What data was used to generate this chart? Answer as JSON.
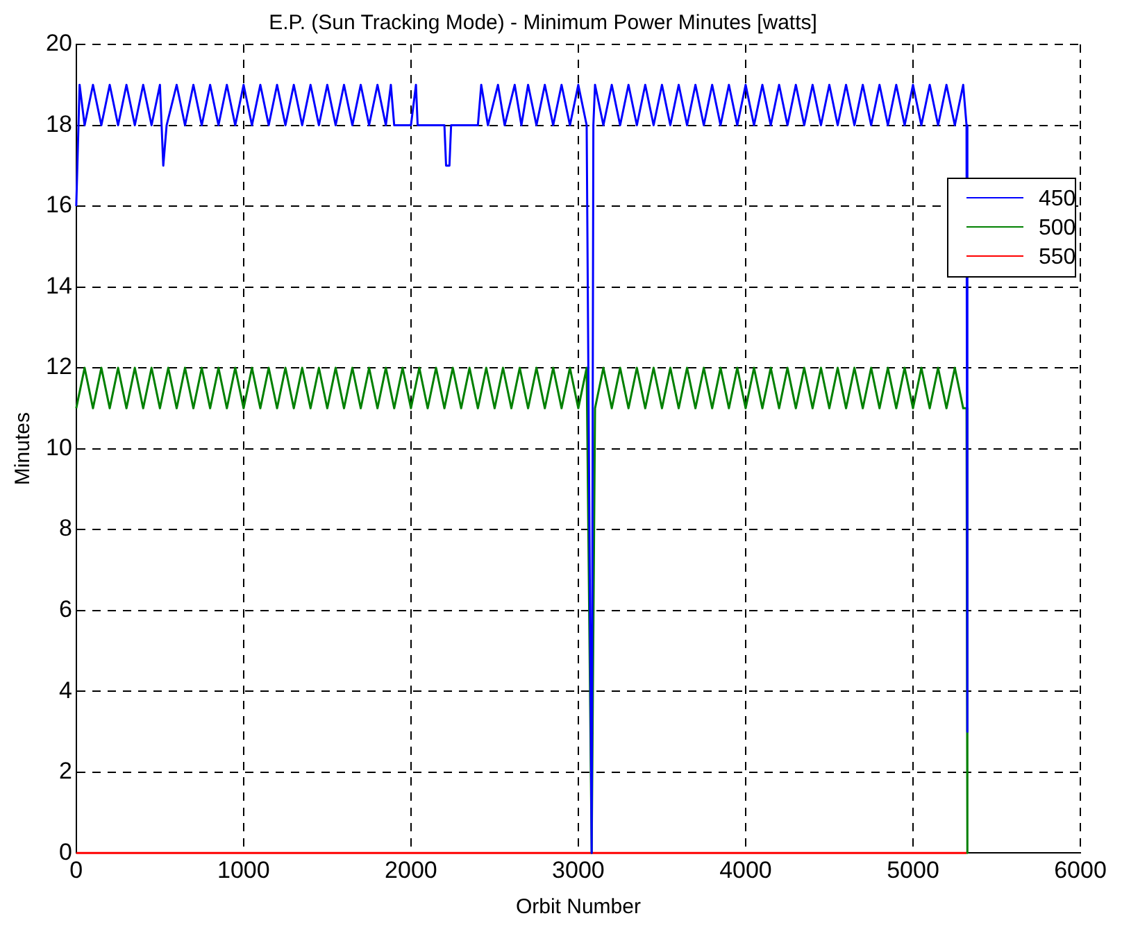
{
  "chart_data": {
    "type": "line",
    "title": "E.P. (Sun Tracking Mode) - Minimum Power Minutes [watts]",
    "xlabel": "Orbit Number",
    "ylabel": "Minutes",
    "xlim": [
      0,
      6000
    ],
    "xticks": [
      0,
      1000,
      2000,
      3000,
      4000,
      5000,
      6000
    ],
    "ylim": [
      0,
      20
    ],
    "yticks": [
      0,
      2,
      4,
      6,
      8,
      10,
      12,
      14,
      16,
      18,
      20
    ],
    "grid": true,
    "legend": "top right",
    "marker": "none",
    "line_style": "solid",
    "series": [
      {
        "name": "450",
        "color": "#0000ff",
        "x": [
          0,
          20,
          50,
          100,
          150,
          200,
          250,
          300,
          350,
          400,
          450,
          500,
          520,
          540,
          600,
          650,
          700,
          750,
          800,
          850,
          900,
          950,
          1000,
          1050,
          1100,
          1150,
          1200,
          1250,
          1300,
          1350,
          1400,
          1450,
          1500,
          1550,
          1600,
          1650,
          1700,
          1750,
          1800,
          1850,
          1880,
          1900,
          2000,
          2030,
          2040,
          2200,
          2210,
          2230,
          2240,
          2400,
          2420,
          2460,
          2520,
          2560,
          2620,
          2660,
          2700,
          2750,
          2800,
          2850,
          2900,
          2950,
          3000,
          3050,
          3080,
          3090,
          3100,
          3150,
          3200,
          3250,
          3300,
          3350,
          3400,
          3450,
          3500,
          3550,
          3600,
          3650,
          3700,
          3750,
          3800,
          3850,
          3900,
          3950,
          4000,
          4050,
          4100,
          4150,
          4200,
          4250,
          4300,
          4350,
          4400,
          4450,
          4500,
          4550,
          4600,
          4650,
          4700,
          4750,
          4800,
          4850,
          4900,
          4950,
          5000,
          5050,
          5100,
          5150,
          5200,
          5250,
          5300,
          5320,
          5325
        ],
        "values": [
          16,
          19,
          18,
          19,
          18,
          19,
          18,
          19,
          18,
          19,
          18,
          19,
          17,
          18,
          19,
          18,
          19,
          18,
          19,
          18,
          19,
          18,
          19,
          18,
          19,
          18,
          19,
          18,
          19,
          18,
          19,
          18,
          19,
          18,
          19,
          18,
          19,
          18,
          19,
          18,
          19,
          18,
          18,
          19,
          18,
          18,
          17,
          17,
          18,
          18,
          19,
          18,
          19,
          18,
          19,
          18,
          19,
          18,
          19,
          18,
          19,
          18,
          19,
          18,
          0,
          18,
          19,
          18,
          19,
          18,
          19,
          18,
          19,
          18,
          19,
          18,
          19,
          18,
          19,
          18,
          19,
          18,
          19,
          18,
          19,
          18,
          19,
          18,
          19,
          18,
          19,
          18,
          19,
          18,
          19,
          18,
          19,
          18,
          19,
          18,
          19,
          18,
          19,
          18,
          19,
          18,
          19,
          18,
          19,
          18,
          19,
          18,
          3
        ]
      },
      {
        "name": "500",
        "color": "#008000",
        "x": [
          0,
          50,
          100,
          150,
          200,
          250,
          300,
          350,
          400,
          450,
          500,
          550,
          600,
          650,
          700,
          750,
          800,
          850,
          900,
          950,
          1000,
          1050,
          1100,
          1150,
          1200,
          1250,
          1300,
          1350,
          1400,
          1450,
          1500,
          1550,
          1600,
          1650,
          1700,
          1750,
          1800,
          1850,
          1900,
          1950,
          2000,
          2050,
          2100,
          2150,
          2200,
          2250,
          2300,
          2350,
          2400,
          2450,
          2500,
          2550,
          2600,
          2650,
          2700,
          2750,
          2800,
          2850,
          2900,
          2950,
          3000,
          3050,
          3080,
          3100,
          3150,
          3200,
          3250,
          3300,
          3350,
          3400,
          3450,
          3500,
          3550,
          3600,
          3650,
          3700,
          3750,
          3800,
          3850,
          3900,
          3950,
          4000,
          4050,
          4100,
          4150,
          4200,
          4250,
          4300,
          4350,
          4400,
          4450,
          4500,
          4550,
          4600,
          4650,
          4700,
          4750,
          4800,
          4850,
          4900,
          4950,
          5000,
          5050,
          5100,
          5150,
          5200,
          5250,
          5300,
          5320,
          5325
        ],
        "values": [
          11,
          12,
          11,
          12,
          11,
          12,
          11,
          12,
          11,
          12,
          11,
          12,
          11,
          12,
          11,
          12,
          11,
          12,
          11,
          12,
          11,
          12,
          11,
          12,
          11,
          12,
          11,
          12,
          11,
          12,
          11,
          12,
          11,
          12,
          11,
          12,
          11,
          12,
          11,
          12,
          11,
          12,
          11,
          12,
          11,
          12,
          11,
          12,
          11,
          12,
          11,
          12,
          11,
          12,
          11,
          12,
          11,
          12,
          11,
          12,
          11,
          12,
          0,
          11,
          12,
          11,
          12,
          11,
          12,
          11,
          12,
          11,
          12,
          11,
          12,
          11,
          12,
          11,
          12,
          11,
          12,
          11,
          12,
          11,
          12,
          11,
          12,
          11,
          12,
          11,
          12,
          11,
          12,
          11,
          12,
          11,
          12,
          11,
          12,
          11,
          12,
          11,
          12,
          11,
          12,
          11,
          12,
          11,
          11,
          0
        ]
      },
      {
        "name": "550",
        "color": "#ff0000",
        "x": [
          0,
          5320
        ],
        "values": [
          0,
          0
        ]
      }
    ]
  }
}
